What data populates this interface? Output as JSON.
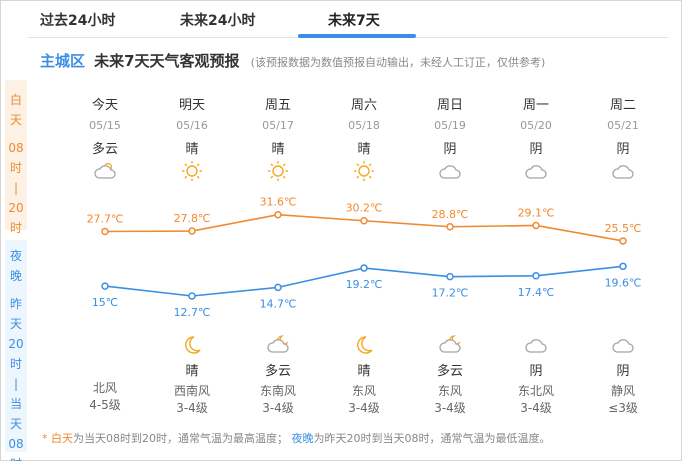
{
  "tabs": [
    {
      "label": "过去24小时"
    },
    {
      "label": "未来24小时"
    },
    {
      "label": "未来7天",
      "active": true
    }
  ],
  "header": {
    "region": "主城区",
    "title": "未来7天天气客观预报",
    "note": "(该预报数据为数值预报自动输出，未经人工订正，仅供参考)"
  },
  "side_labels": {
    "day": [
      "白",
      "天",
      "",
      "08",
      "时",
      "|",
      "20",
      "时"
    ],
    "night": [
      "夜",
      "晚",
      "",
      "昨",
      "天",
      "20",
      "时",
      "|",
      "当",
      "天",
      "08",
      "时"
    ]
  },
  "days": [
    {
      "name": "今天",
      "date": "05/15",
      "day_cond": "多云",
      "day_icon": "partly-cloudy-icon",
      "high": "27.7℃",
      "low": "15℃",
      "night_cond": "",
      "night_icon": "",
      "wind_dir": "北风",
      "wind_lvl": "4-5级"
    },
    {
      "name": "明天",
      "date": "05/16",
      "day_cond": "晴",
      "day_icon": "sun-icon",
      "high": "27.8℃",
      "low": "12.7℃",
      "night_cond": "晴",
      "night_icon": "moon-icon",
      "wind_dir": "西南风",
      "wind_lvl": "3-4级"
    },
    {
      "name": "周五",
      "date": "05/17",
      "day_cond": "晴",
      "day_icon": "sun-icon",
      "high": "31.6℃",
      "low": "14.7℃",
      "night_cond": "多云",
      "night_icon": "cloudy-night-icon",
      "wind_dir": "东南风",
      "wind_lvl": "3-4级"
    },
    {
      "name": "周六",
      "date": "05/18",
      "day_cond": "晴",
      "day_icon": "sun-icon",
      "high": "30.2℃",
      "low": "19.2℃",
      "night_cond": "晴",
      "night_icon": "moon-icon",
      "wind_dir": "东风",
      "wind_lvl": "3-4级"
    },
    {
      "name": "周日",
      "date": "05/19",
      "day_cond": "阴",
      "day_icon": "cloud-icon",
      "high": "28.8℃",
      "low": "17.2℃",
      "night_cond": "多云",
      "night_icon": "cloudy-night-icon",
      "wind_dir": "东风",
      "wind_lvl": "3-4级"
    },
    {
      "name": "周一",
      "date": "05/20",
      "day_cond": "阴",
      "day_icon": "cloud-icon",
      "high": "29.1℃",
      "low": "17.4℃",
      "night_cond": "阴",
      "night_icon": "cloud-icon",
      "wind_dir": "东北风",
      "wind_lvl": "3-4级"
    },
    {
      "name": "周二",
      "date": "05/21",
      "day_cond": "阴",
      "day_icon": "cloud-icon",
      "high": "25.5℃",
      "low": "19.6℃",
      "night_cond": "阴",
      "night_icon": "cloud-icon",
      "wind_dir": "静风",
      "wind_lvl": "≤3级"
    }
  ],
  "chart_data": {
    "type": "line",
    "categories": [
      "05/15",
      "05/16",
      "05/17",
      "05/18",
      "05/19",
      "05/20",
      "05/21"
    ],
    "series": [
      {
        "name": "",
        "values": [
          27.7,
          27.8,
          31.6,
          30.2,
          28.8,
          29.1,
          25.5
        ],
        "color": "#f08a30"
      },
      {
        "name": "",
        "values": [
          15,
          12.7,
          14.7,
          19.2,
          17.2,
          17.4,
          19.6
        ],
        "color": "#3b8fe3"
      }
    ]
  },
  "footnote": {
    "star": "* ",
    "day_word": "白天",
    "day_text": "为当天08时到20时，通常气温为最高温度；",
    "night_word": "夜晚",
    "night_text": "为昨天20时到当天08时，通常气温为最低温度。"
  },
  "colors": {
    "accent": "#3a8ee6",
    "day": "#f08a30",
    "night": "#3b8fe3",
    "icon_sun": "#f5a623",
    "icon_cloud": "#a5a5a5",
    "icon_moon": "#f5a623"
  }
}
